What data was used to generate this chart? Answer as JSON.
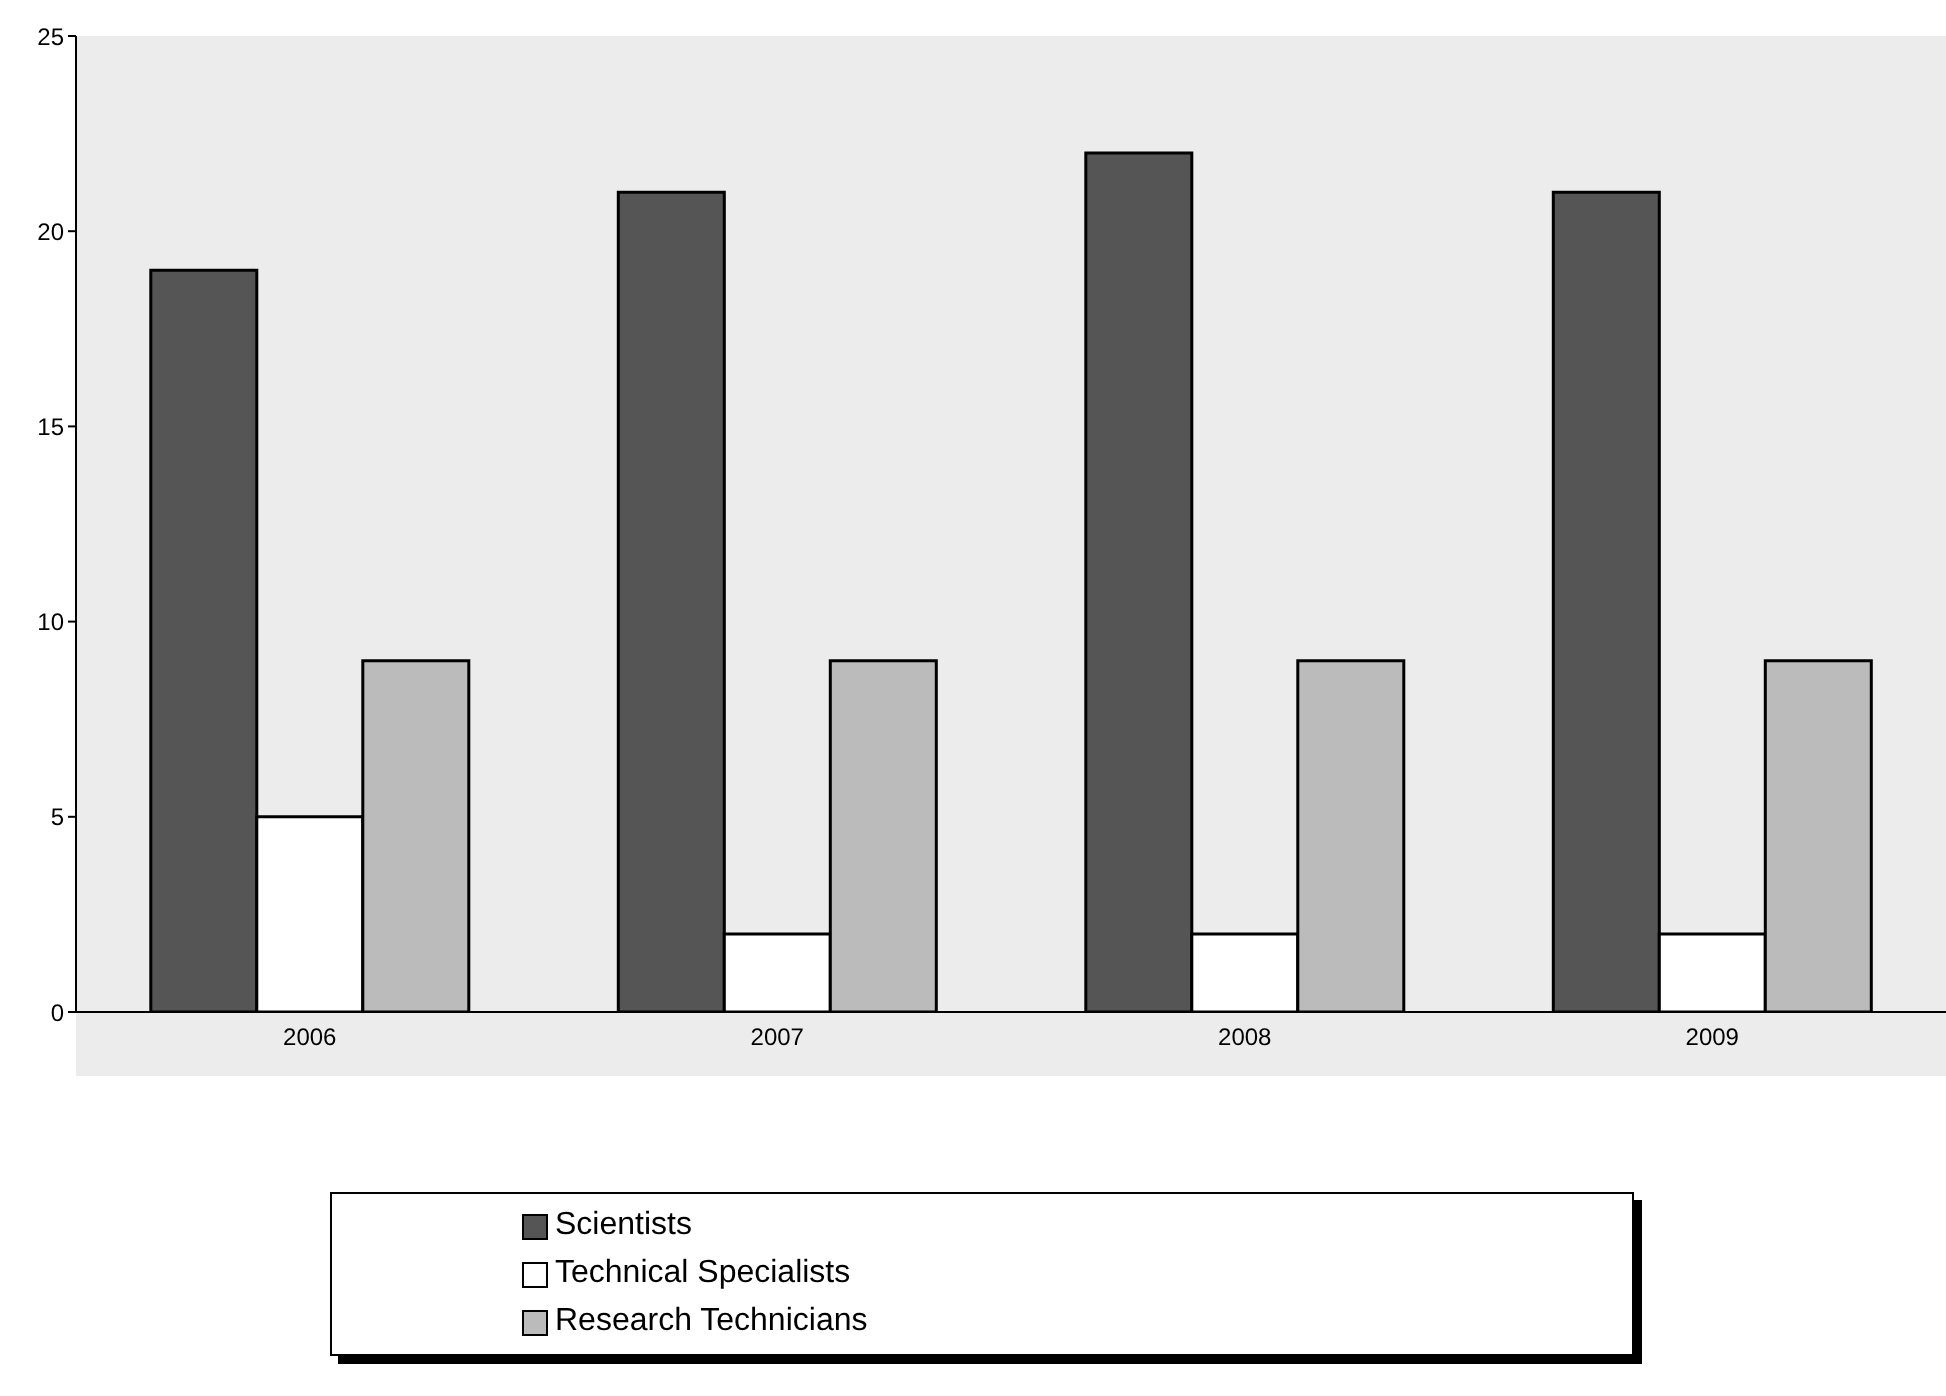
{
  "chart_data": {
    "type": "bar",
    "categories": [
      "2006",
      "2007",
      "2008",
      "2009"
    ],
    "series": [
      {
        "name": "Scientists",
        "color": "#555555",
        "values": [
          19,
          21,
          22,
          21
        ]
      },
      {
        "name": "Technical Specialists",
        "color": "#ffffff",
        "values": [
          5,
          2,
          2,
          2
        ]
      },
      {
        "name": "Research Technicians",
        "color": "#bbbbbb",
        "values": [
          9,
          9,
          9,
          9
        ]
      }
    ],
    "ylim": [
      0,
      25
    ],
    "yticks": [
      0,
      5,
      10,
      15,
      20,
      25
    ],
    "grid": false,
    "legend": "bottom"
  }
}
